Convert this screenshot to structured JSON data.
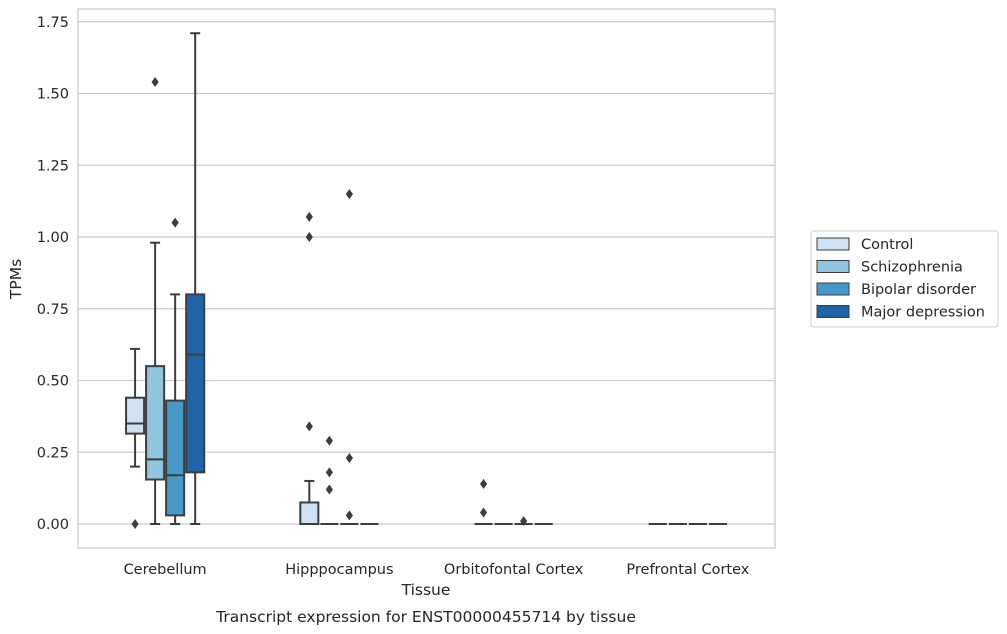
{
  "chart_data": {
    "type": "box",
    "caption": "Transcript expression for ENST00000455714 by tissue",
    "xlabel": "Tissue",
    "ylabel": "TPMs",
    "ylim": [
      -0.08,
      1.8
    ],
    "yticks": [
      0,
      0.25,
      0.5,
      0.75,
      1.0,
      1.25,
      1.5,
      1.75
    ],
    "ytick_labels": [
      "0.00",
      "0.25",
      "0.50",
      "0.75",
      "1.00",
      "1.25",
      "1.50",
      "1.75"
    ],
    "grid": "horizontal",
    "legend_position": "right",
    "categories": [
      "Cerebellum",
      "Hipppocampus",
      "Orbitofontal Cortex",
      "Prefrontal Cortex"
    ],
    "series": [
      {
        "name": "Control",
        "color": "#cfe1f2",
        "boxes": [
          {
            "whislo": 0.2,
            "q1": 0.315,
            "med": 0.35,
            "q3": 0.44,
            "whishi": 0.61,
            "fliers": [
              0.0
            ]
          },
          {
            "whislo": 0.0,
            "q1": 0.0,
            "med": 0.0,
            "q3": 0.075,
            "whishi": 0.15,
            "fliers": [
              0.34,
              1.0,
              1.07
            ]
          },
          {
            "whislo": 0.0,
            "q1": 0.0,
            "med": 0.0,
            "q3": 0.0,
            "whishi": 0.0,
            "fliers": [
              0.04,
              0.14
            ]
          },
          {
            "whislo": 0.0,
            "q1": 0.0,
            "med": 0.0,
            "q3": 0.0,
            "whishi": 0.0,
            "fliers": []
          }
        ]
      },
      {
        "name": "Schizophrenia",
        "color": "#93c4de",
        "boxes": [
          {
            "whislo": 0.0,
            "q1": 0.155,
            "med": 0.225,
            "q3": 0.55,
            "whishi": 0.98,
            "fliers": [
              1.54
            ]
          },
          {
            "whislo": 0.0,
            "q1": 0.0,
            "med": 0.0,
            "q3": 0.0,
            "whishi": 0.0,
            "fliers": [
              0.12,
              0.18,
              0.29
            ]
          },
          {
            "whislo": 0.0,
            "q1": 0.0,
            "med": 0.0,
            "q3": 0.0,
            "whishi": 0.0,
            "fliers": []
          },
          {
            "whislo": 0.0,
            "q1": 0.0,
            "med": 0.0,
            "q3": 0.0,
            "whishi": 0.0,
            "fliers": []
          }
        ]
      },
      {
        "name": "Bipolar disorder",
        "color": "#4a98c9",
        "boxes": [
          {
            "whislo": 0.0,
            "q1": 0.03,
            "med": 0.17,
            "q3": 0.43,
            "whishi": 0.8,
            "fliers": [
              1.05
            ]
          },
          {
            "whislo": 0.0,
            "q1": 0.0,
            "med": 0.0,
            "q3": 0.0,
            "whishi": 0.0,
            "fliers": [
              0.03,
              0.23,
              1.15
            ]
          },
          {
            "whislo": 0.0,
            "q1": 0.0,
            "med": 0.0,
            "q3": 0.0,
            "whishi": 0.0,
            "fliers": [
              0.01
            ]
          },
          {
            "whislo": 0.0,
            "q1": 0.0,
            "med": 0.0,
            "q3": 0.0,
            "whishi": 0.0,
            "fliers": []
          }
        ]
      },
      {
        "name": "Major depression",
        "color": "#2064a8",
        "boxes": [
          {
            "whislo": 0.0,
            "q1": 0.18,
            "med": 0.59,
            "q3": 0.8,
            "whishi": 1.71,
            "fliers": []
          },
          {
            "whislo": 0.0,
            "q1": 0.0,
            "med": 0.0,
            "q3": 0.0,
            "whishi": 0.0,
            "fliers": []
          },
          {
            "whislo": 0.0,
            "q1": 0.0,
            "med": 0.0,
            "q3": 0.0,
            "whishi": 0.0,
            "fliers": []
          },
          {
            "whislo": 0.0,
            "q1": 0.0,
            "med": 0.0,
            "q3": 0.0,
            "whishi": 0.0,
            "fliers": []
          }
        ]
      }
    ]
  }
}
